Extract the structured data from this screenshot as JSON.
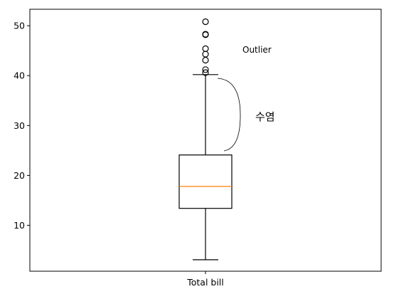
{
  "chart_data": {
    "type": "box",
    "categories": [
      "Total bill"
    ],
    "series": [
      {
        "stats": {
          "whisker_low": 3.1,
          "q1": 13.4,
          "median": 17.8,
          "q3": 24.1,
          "whisker_high": 40.2
        },
        "outliers": [
          40.6,
          41.2,
          43.1,
          44.3,
          45.4,
          48.2,
          48.3,
          50.8
        ],
        "colors": {
          "box": "#000000",
          "median": "#ff7f0e"
        }
      }
    ],
    "ylim": [
      0.8,
      53.3
    ],
    "yticks": [
      10,
      20,
      30,
      40,
      50
    ],
    "grid": false,
    "annotations": {
      "outlier_label": "Outlier",
      "whisker_label": "수염"
    }
  }
}
